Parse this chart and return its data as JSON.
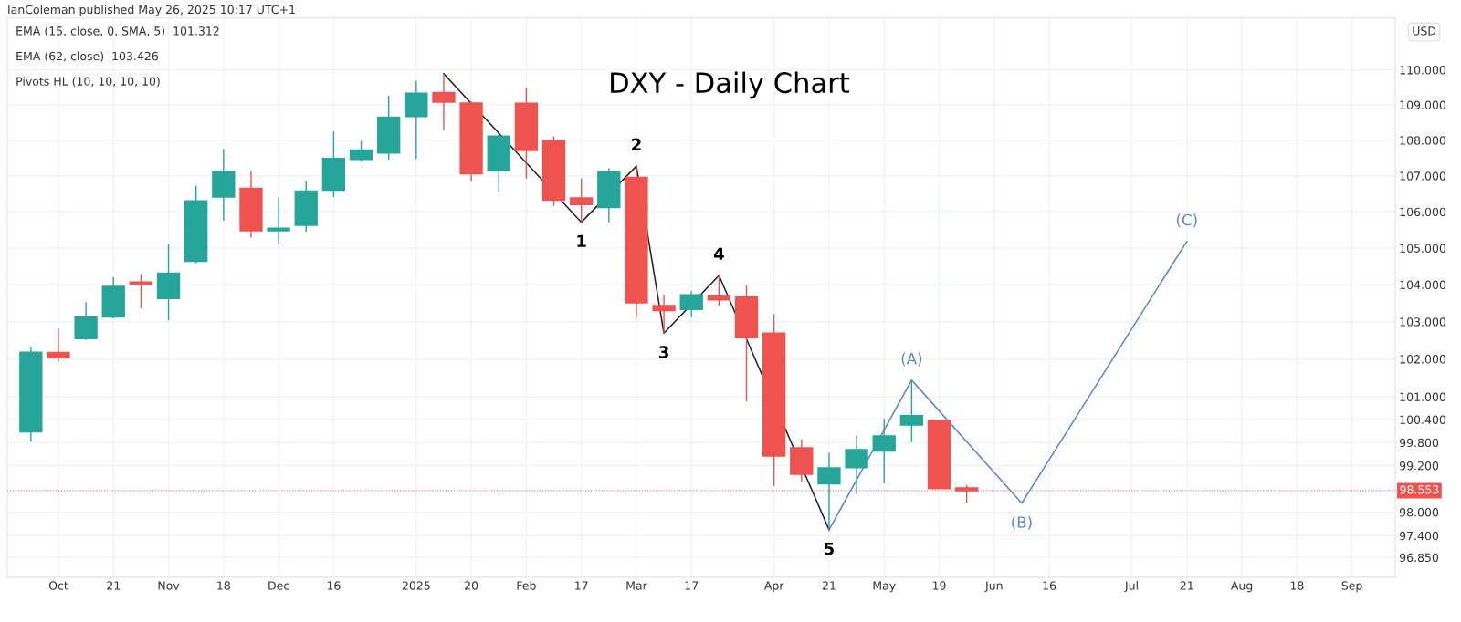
{
  "chart_data": {
    "type": "candlestick",
    "title": "DXY - Daily Chart",
    "subtitle": "IanColeman published May 26, 2025 10:17 UTC+1",
    "ylabel": "USD",
    "x": [
      "2024-09-30",
      "2024-10-07",
      "2024-10-14",
      "2024-10-21",
      "2024-10-28",
      "2024-11-04",
      "2024-11-11",
      "2024-11-18",
      "2024-11-25",
      "2024-12-02",
      "2024-12-09",
      "2024-12-16",
      "2024-12-23",
      "2024-12-30",
      "2025-01-06",
      "2025-01-13",
      "2025-01-20",
      "2025-01-27",
      "2025-02-03",
      "2025-02-10",
      "2025-02-17",
      "2025-02-24",
      "2025-03-03",
      "2025-03-10",
      "2025-03-17",
      "2025-03-24",
      "2025-03-31",
      "2025-04-07",
      "2025-04-14",
      "2025-04-21",
      "2025-04-28",
      "2025-05-05",
      "2025-05-12",
      "2025-05-19",
      "2025-05-26"
    ],
    "ohlc": [
      [
        100.08,
        102.32,
        99.83,
        102.18
      ],
      [
        102.17,
        102.82,
        101.93,
        102.04
      ],
      [
        102.55,
        103.53,
        102.5,
        103.12
      ],
      [
        103.13,
        104.21,
        103.09,
        103.95
      ],
      [
        104.07,
        104.29,
        103.36,
        104.01
      ],
      [
        103.63,
        105.1,
        103.04,
        104.31
      ],
      [
        104.64,
        106.72,
        104.58,
        106.3
      ],
      [
        106.41,
        107.75,
        105.76,
        107.12
      ],
      [
        106.65,
        107.14,
        105.28,
        105.48
      ],
      [
        105.48,
        106.4,
        105.1,
        105.54
      ],
      [
        105.63,
        106.84,
        105.45,
        106.57
      ],
      [
        106.6,
        108.24,
        106.4,
        107.48
      ],
      [
        107.46,
        107.98,
        107.39,
        107.72
      ],
      [
        107.64,
        109.26,
        107.45,
        108.65
      ],
      [
        108.67,
        109.68,
        107.47,
        109.33
      ],
      [
        109.35,
        109.89,
        108.29,
        109.08
      ],
      [
        109.05,
        109.1,
        106.84,
        107.06
      ],
      [
        107.14,
        108.2,
        106.57,
        108.11
      ],
      [
        109.04,
        109.5,
        106.92,
        107.71
      ],
      [
        107.98,
        108.11,
        106.16,
        106.32
      ],
      [
        106.38,
        106.93,
        105.71,
        106.2
      ],
      [
        106.12,
        107.21,
        105.71,
        107.11
      ],
      [
        106.95,
        107.27,
        103.12,
        103.51
      ],
      [
        103.43,
        103.72,
        102.69,
        103.3
      ],
      [
        103.33,
        103.83,
        103.12,
        103.72
      ],
      [
        103.69,
        104.25,
        103.43,
        103.59
      ],
      [
        103.66,
        103.99,
        100.87,
        102.57
      ],
      [
        102.69,
        103.2,
        98.67,
        99.45
      ],
      [
        99.66,
        99.88,
        98.79,
        98.98
      ],
      [
        98.73,
        99.53,
        97.55,
        99.14
      ],
      [
        99.15,
        99.98,
        98.46,
        99.61
      ],
      [
        99.58,
        100.42,
        98.74,
        99.97
      ],
      [
        100.26,
        101.44,
        99.81,
        100.5
      ],
      [
        100.38,
        100.38,
        98.61,
        98.61
      ],
      [
        98.62,
        98.7,
        98.23,
        98.553
      ]
    ],
    "colors": [
      "#26a69a",
      "#ef5350",
      "#26a69a",
      "#26a69a",
      "#ef5350",
      "#26a69a",
      "#26a69a",
      "#26a69a",
      "#ef5350",
      "#26a69a",
      "#26a69a",
      "#26a69a",
      "#26a69a",
      "#26a69a",
      "#26a69a",
      "#ef5350",
      "#ef5350",
      "#26a69a",
      "#ef5350",
      "#ef5350",
      "#ef5350",
      "#26a69a",
      "#ef5350",
      "#ef5350",
      "#26a69a",
      "#ef5350",
      "#ef5350",
      "#ef5350",
      "#ef5350",
      "#26a69a",
      "#26a69a",
      "#26a69a",
      "#26a69a",
      "#ef5350",
      "#ef5350"
    ],
    "series": [
      {
        "type": "line",
        "color": "#222222",
        "x": [
          "2025-01-13",
          "2025-02-17",
          "2025-03-03",
          "2025-03-10",
          "2025-03-24",
          "2025-04-21"
        ],
        "values": [
          109.89,
          105.71,
          107.27,
          102.69,
          104.25,
          97.55
        ]
      },
      {
        "type": "line",
        "color": "#5b82d6",
        "x": [
          "2025-04-21",
          "2025-05-12",
          "2025-06-09",
          "2025-07-21"
        ],
        "values": [
          97.55,
          101.44,
          98.23,
          105.18
        ]
      }
    ],
    "annotations": [
      "EMA (15, close, 0, SMA, 5)  101.312",
      "EMA (62, close)  103.426",
      "Pivots HL (10, 10, 10, 10)",
      {
        "text": "1",
        "x": "2025-02-17",
        "y": 105.71
      },
      {
        "text": "2",
        "x": "2025-03-03",
        "y": 107.27
      },
      {
        "text": "3",
        "x": "2025-03-10",
        "y": 102.69
      },
      {
        "text": "4",
        "x": "2025-03-24",
        "y": 104.25
      },
      {
        "text": "5",
        "x": "2025-04-21",
        "y": 97.55
      },
      {
        "text": "(A)",
        "x": "2025-05-12",
        "y": 101.44
      },
      {
        "text": "(B)",
        "x": "2025-06-09",
        "y": 98.23
      },
      {
        "text": "(C)",
        "x": "2025-07-21",
        "y": 105.18
      }
    ],
    "ref_lines": [
      {
        "axis": "y",
        "value": 98.553,
        "label": "98.553",
        "color": "#ef5350",
        "line_style": "dotted"
      }
    ],
    "log": true,
    "grid": true,
    "xlim": [
      "2024-09-24",
      "2025-09-12"
    ],
    "xticks": [
      {
        "value": "2024-10-07",
        "label": "Oct"
      },
      {
        "value": "2024-10-21",
        "label": "21"
      },
      {
        "value": "2024-11-04",
        "label": "Nov"
      },
      {
        "value": "2024-11-18",
        "label": "18"
      },
      {
        "value": "2024-12-02",
        "label": "Dec"
      },
      {
        "value": "2024-12-16",
        "label": "16"
      },
      {
        "value": "2025-01-06",
        "label": "2025"
      },
      {
        "value": "2025-01-20",
        "label": "20"
      },
      {
        "value": "2025-02-03",
        "label": "Feb"
      },
      {
        "value": "2025-02-17",
        "label": "17"
      },
      {
        "value": "2025-03-03",
        "label": "Mar"
      },
      {
        "value": "2025-03-17",
        "label": "17"
      },
      {
        "value": "2025-04-07",
        "label": "Apr"
      },
      {
        "value": "2025-04-21",
        "label": "21"
      },
      {
        "value": "2025-05-05",
        "label": "May"
      },
      {
        "value": "2025-05-19",
        "label": "19"
      },
      {
        "value": "2025-06-02",
        "label": "Jun"
      },
      {
        "value": "2025-06-16",
        "label": "16"
      },
      {
        "value": "2025-07-07",
        "label": "Jul"
      },
      {
        "value": "2025-07-21",
        "label": "21"
      },
      {
        "value": "2025-08-04",
        "label": "Aug"
      },
      {
        "value": "2025-08-18",
        "label": "18"
      },
      {
        "value": "2025-09-01",
        "label": "Sep"
      }
    ],
    "ylim": [
      96.35,
      111.5
    ],
    "yticks": [
      {
        "value": 110,
        "label": "110.000"
      },
      {
        "value": 109,
        "label": "109.000"
      },
      {
        "value": 108,
        "label": "108.000"
      },
      {
        "value": 107,
        "label": "107.000"
      },
      {
        "value": 106,
        "label": "106.000"
      },
      {
        "value": 105,
        "label": "105.000"
      },
      {
        "value": 104,
        "label": "104.000"
      },
      {
        "value": 103,
        "label": "103.000"
      },
      {
        "value": 102,
        "label": "102.000"
      },
      {
        "value": 101,
        "label": "101.000"
      },
      {
        "value": 100.4,
        "label": "100.400"
      },
      {
        "value": 99.8,
        "label": "99.800"
      },
      {
        "value": 99.2,
        "label": "99.200"
      },
      {
        "value": 98,
        "label": "98.000"
      },
      {
        "value": 97.4,
        "label": "97.400"
      },
      {
        "value": 96.85,
        "label": "96.850"
      }
    ]
  }
}
